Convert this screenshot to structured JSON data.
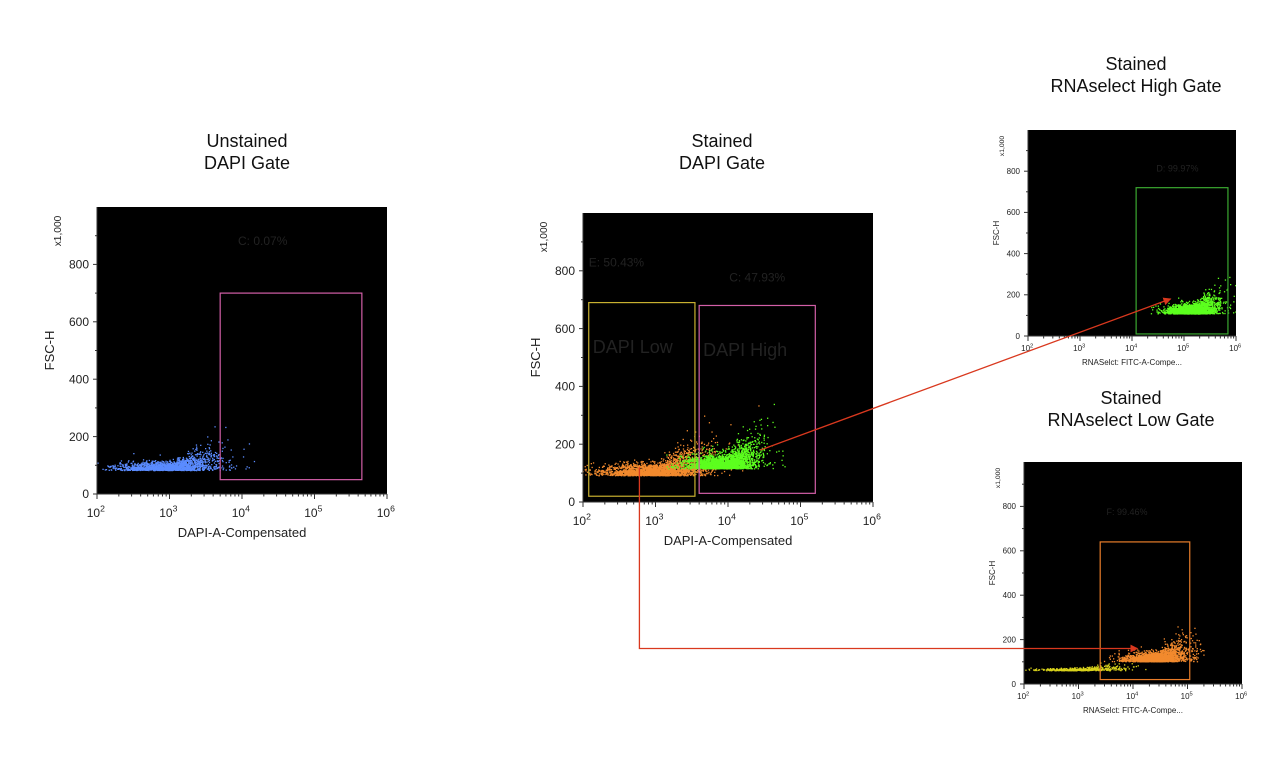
{
  "titles": {
    "unstained_dapi": [
      "Unstained",
      "DAPI Gate"
    ],
    "stained_dapi": [
      "Stained",
      "DAPI Gate"
    ],
    "rna_high": [
      "Stained",
      "RNAselect High Gate"
    ],
    "rna_low": [
      "Stained",
      "RNAselect Low Gate"
    ]
  },
  "colors": {
    "blue_events": "#5b8cff",
    "orange_events": "#f28a2e",
    "green_events": "#5cff1e",
    "yellow_events": "#d8d21c",
    "gate_pink": "#d35fa8",
    "gate_yellow": "#c8b030",
    "gate_green": "#3aa830",
    "gate_orange": "#e87d2a",
    "arrow_red": "#d9381e",
    "plot_bg": "#000000"
  },
  "chart_data": [
    {
      "id": "unstained-dapi",
      "type": "scatter",
      "title": "Unstained DAPI Gate",
      "xlabel": "DAPI-A-Compensated",
      "ylabel": "FSC-H",
      "y_multiplier_label": "x1,000",
      "x_scale": "log",
      "xlim": [
        100,
        1000000
      ],
      "ylim": [
        0,
        1000
      ],
      "x_tick_labels": [
        {
          "base": "10",
          "exp": "2"
        },
        {
          "base": "10",
          "exp": "3"
        },
        {
          "base": "10",
          "exp": "4"
        },
        {
          "base": "10",
          "exp": "5"
        },
        {
          "base": "10",
          "exp": "6"
        }
      ],
      "y_ticks": [
        0,
        200,
        400,
        600,
        800
      ],
      "gates": [
        {
          "label": "C: 0.07%",
          "color": "#d35fa8",
          "x_range": [
            5000,
            450000
          ],
          "y_range": [
            50,
            700
          ]
        }
      ],
      "populations": [
        {
          "color": "#5b8cff",
          "x_center": 1100,
          "y_center": 105,
          "x_spread_log": 0.35,
          "y_spread": 35,
          "count": 1600
        }
      ]
    },
    {
      "id": "stained-dapi",
      "type": "scatter",
      "title": "Stained DAPI Gate",
      "xlabel": "DAPI-A-Compensated",
      "ylabel": "FSC-H",
      "y_multiplier_label": "x1,000",
      "x_scale": "log",
      "xlim": [
        100,
        1000000
      ],
      "ylim": [
        0,
        1000
      ],
      "x_tick_labels": [
        {
          "base": "10",
          "exp": "2"
        },
        {
          "base": "10",
          "exp": "3"
        },
        {
          "base": "10",
          "exp": "4"
        },
        {
          "base": "10",
          "exp": "5"
        },
        {
          "base": "10",
          "exp": "6"
        }
      ],
      "y_ticks": [
        0,
        200,
        400,
        600,
        800
      ],
      "gates": [
        {
          "label": "E: 50.43%",
          "color": "#c8b030",
          "x_range": [
            120,
            3500
          ],
          "y_range": [
            20,
            690
          ],
          "inner_label": "DAPI Low"
        },
        {
          "label": "C: 47.93%",
          "color": "#d35fa8",
          "x_range": [
            4000,
            160000
          ],
          "y_range": [
            30,
            680
          ],
          "inner_label": "DAPI High"
        }
      ],
      "populations": [
        {
          "color": "#f28a2e",
          "x_center": 1100,
          "y_center": 120,
          "x_spread_log": 0.38,
          "y_spread": 45,
          "count": 2600
        },
        {
          "color": "#5cff1e",
          "x_center": 9000,
          "y_center": 150,
          "x_spread_log": 0.25,
          "y_spread": 55,
          "count": 2400
        }
      ]
    },
    {
      "id": "rna-high",
      "type": "scatter",
      "title": "Stained RNAselect High Gate",
      "xlabel": "RNASelct: FITC-A-Compe...",
      "ylabel": "FSC-H",
      "y_multiplier_label": "x1,000",
      "x_scale": "log",
      "xlim": [
        100,
        1000000
      ],
      "ylim": [
        0,
        1000
      ],
      "x_tick_labels": [
        {
          "base": "10",
          "exp": "2"
        },
        {
          "base": "10",
          "exp": "3"
        },
        {
          "base": "10",
          "exp": "4"
        },
        {
          "base": "10",
          "exp": "5"
        },
        {
          "base": "10",
          "exp": "6"
        }
      ],
      "y_ticks": [
        0,
        200,
        400,
        600,
        800
      ],
      "gates": [
        {
          "label": "D: 99.97%",
          "color": "#3aa830",
          "x_range": [
            12000,
            700000
          ],
          "y_range": [
            10,
            720
          ]
        }
      ],
      "populations": [
        {
          "color": "#5cff1e",
          "x_center": 150000,
          "y_center": 140,
          "x_spread_log": 0.25,
          "y_spread": 50,
          "count": 2200
        }
      ]
    },
    {
      "id": "rna-low",
      "type": "scatter",
      "title": "Stained RNAselect Low Gate",
      "xlabel": "RNASelct: FITC-A-Compe...",
      "ylabel": "FSC-H",
      "y_multiplier_label": "x1,000",
      "x_scale": "log",
      "xlim": [
        100,
        1000000
      ],
      "ylim": [
        0,
        1000
      ],
      "x_tick_labels": [
        {
          "base": "10",
          "exp": "2"
        },
        {
          "base": "10",
          "exp": "3"
        },
        {
          "base": "10",
          "exp": "4"
        },
        {
          "base": "10",
          "exp": "5"
        },
        {
          "base": "10",
          "exp": "6"
        }
      ],
      "y_ticks": [
        0,
        200,
        400,
        600,
        800
      ],
      "gates": [
        {
          "label": "F: 99.46%",
          "color": "#e87d2a",
          "x_range": [
            2500,
            110000
          ],
          "y_range": [
            20,
            640
          ]
        }
      ],
      "populations": [
        {
          "color": "#d8d21c",
          "x_center": 1200,
          "y_center": 70,
          "x_spread_log": 0.4,
          "y_spread": 12,
          "count": 500
        },
        {
          "color": "#f28a2e",
          "x_center": 28000,
          "y_center": 130,
          "x_spread_log": 0.28,
          "y_spread": 45,
          "count": 2200
        }
      ]
    }
  ]
}
